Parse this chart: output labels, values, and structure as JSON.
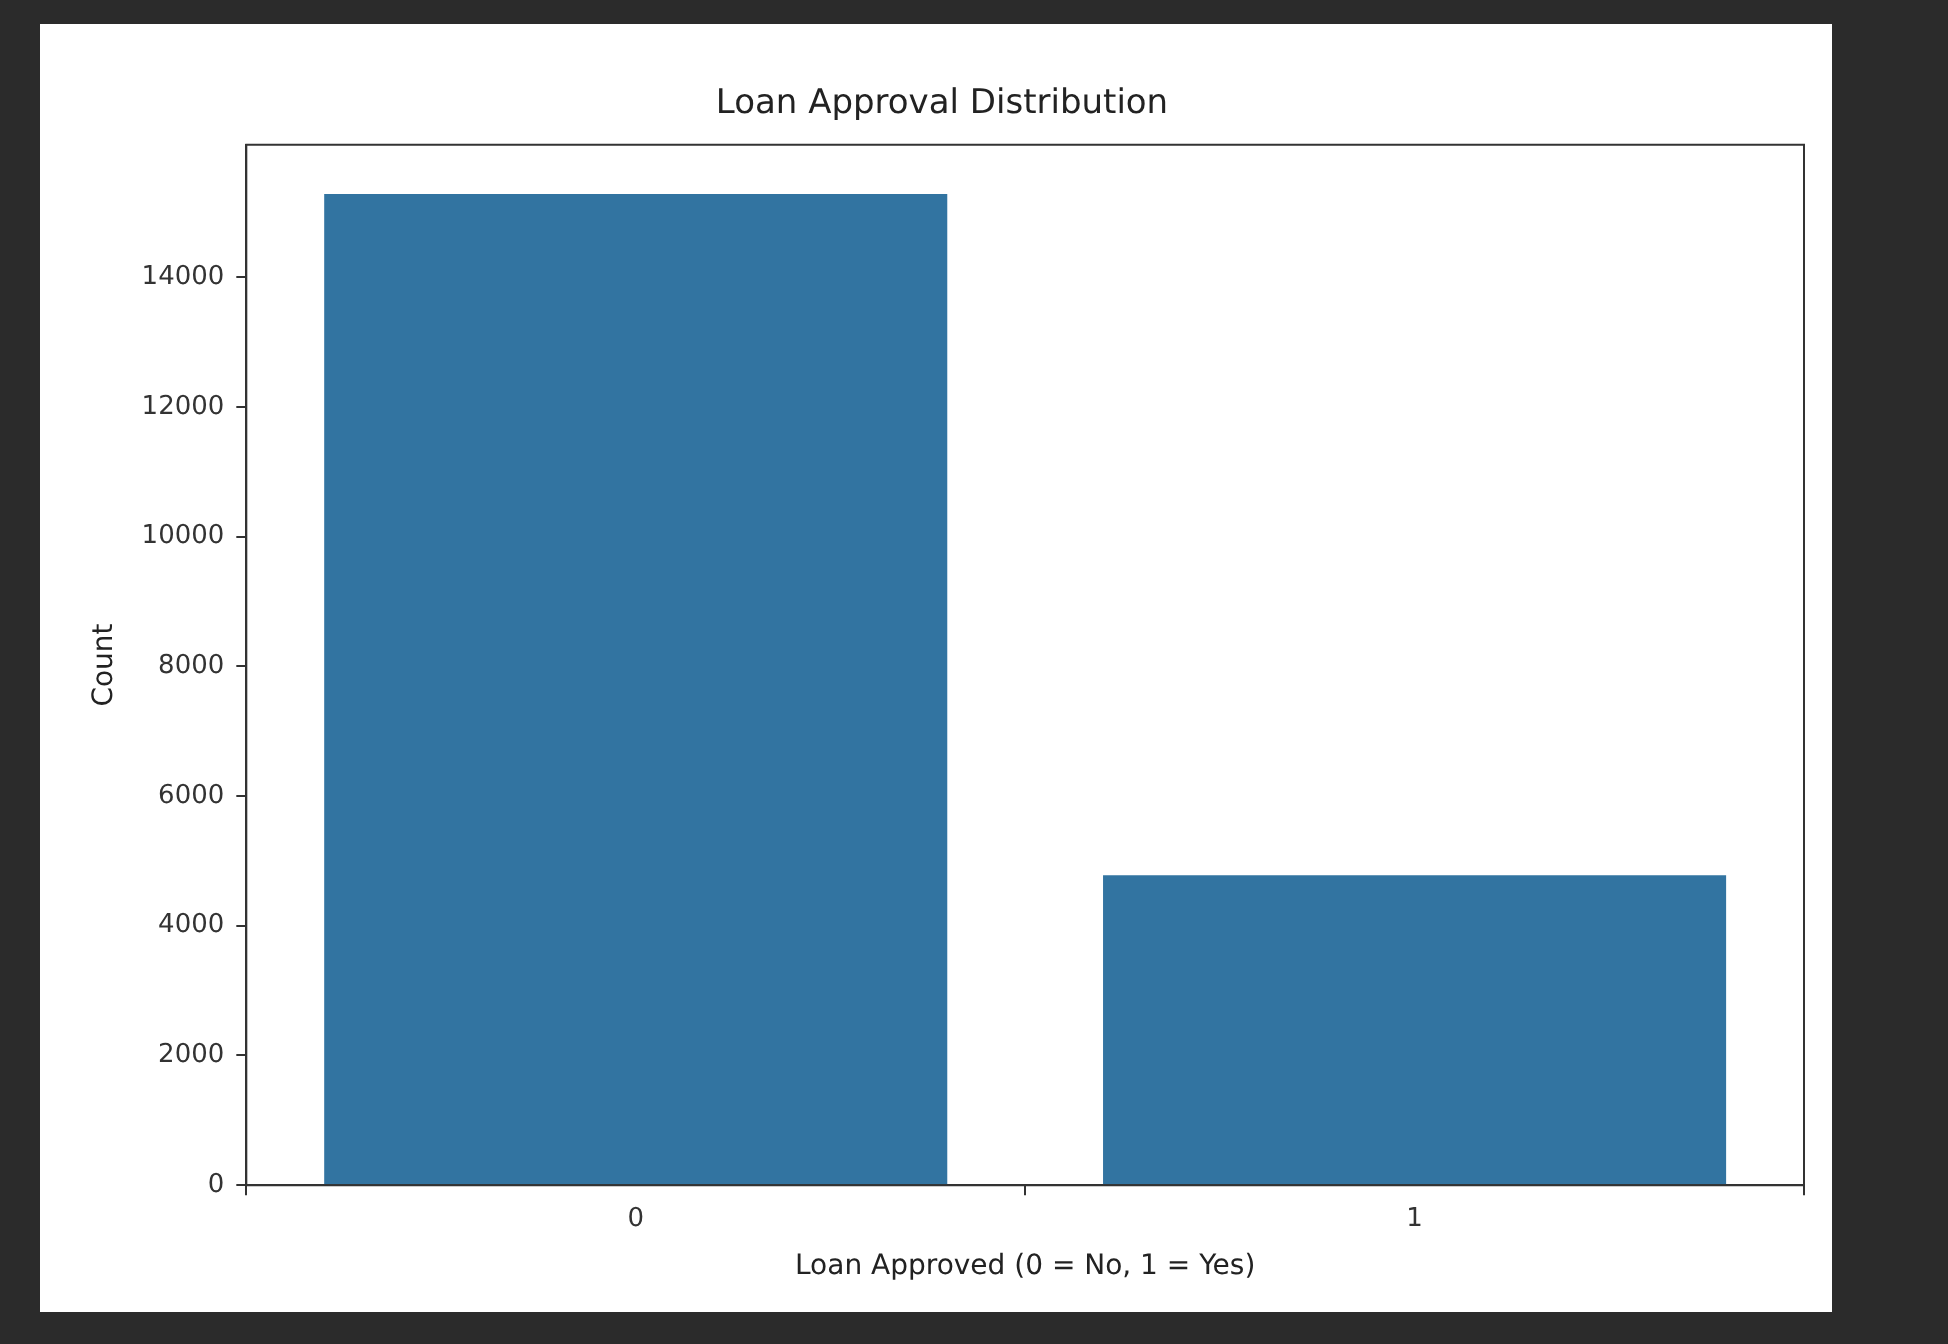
{
  "chart_data": {
    "type": "bar",
    "title": "Loan Approval Distribution",
    "xlabel": "Loan Approved (0 = No, 1 = Yes)",
    "ylabel": "Count",
    "categories": [
      "0",
      "1"
    ],
    "values": [
      15280,
      4780
    ],
    "color": "#3274a1",
    "ylim": [
      0,
      16040
    ],
    "yticks": [
      0,
      2000,
      4000,
      6000,
      8000,
      10000,
      12000,
      14000
    ],
    "grid": false
  }
}
